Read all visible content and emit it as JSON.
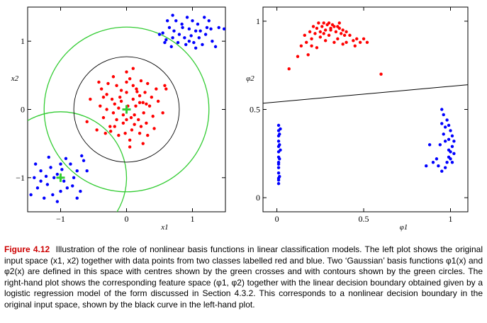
{
  "chart_data": [
    {
      "type": "scatter",
      "panel": "left",
      "xlabel": "x1",
      "ylabel": "x2",
      "xlim": [
        -1.5,
        1.5
      ],
      "ylim": [
        -1.5,
        1.5
      ],
      "xticks": [
        -1,
        0,
        1
      ],
      "xtick_labels": [
        "−1",
        "0",
        "1"
      ],
      "yticks": [
        -1,
        0,
        1
      ],
      "ytick_labels": [
        "−1",
        "0",
        "1"
      ],
      "series": [
        {
          "color": "#ff0000",
          "points": [
            [
              0.02,
              0.05
            ],
            [
              -0.1,
              0.18
            ],
            [
              0.12,
              -0.08
            ],
            [
              -0.2,
              -0.05
            ],
            [
              0.25,
              0.1
            ],
            [
              -0.05,
              -0.2
            ],
            [
              0.15,
              0.3
            ],
            [
              -0.3,
              0.22
            ],
            [
              0.3,
              -0.2
            ],
            [
              -0.15,
              0.35
            ],
            [
              0.05,
              0.45
            ],
            [
              -0.25,
              -0.25
            ],
            [
              0.35,
              0.05
            ],
            [
              0.2,
              -0.35
            ],
            [
              -0.4,
              0.05
            ],
            [
              0.08,
              -0.3
            ],
            [
              -0.08,
              0.28
            ],
            [
              0.22,
              0.42
            ],
            [
              -0.35,
              -0.12
            ],
            [
              0.4,
              -0.1
            ],
            [
              0.1,
              0.15
            ],
            [
              -0.18,
              0.08
            ],
            [
              0.28,
              0.25
            ],
            [
              -0.12,
              -0.38
            ],
            [
              0.18,
              -0.15
            ],
            [
              -0.28,
              0.38
            ],
            [
              0.05,
              -0.45
            ],
            [
              0.45,
              0.3
            ],
            [
              -0.45,
              -0.3
            ],
            [
              0.32,
              -0.38
            ],
            [
              0.0,
              0.25
            ],
            [
              -0.22,
              0.15
            ],
            [
              0.14,
              0.05
            ],
            [
              -0.05,
              -0.08
            ],
            [
              0.26,
              -0.05
            ],
            [
              -0.38,
              0.3
            ],
            [
              0.1,
              0.35
            ],
            [
              -0.15,
              -0.15
            ],
            [
              0.38,
              0.18
            ],
            [
              -0.02,
              -0.35
            ],
            [
              0.2,
              0.2
            ],
            [
              -0.32,
              -0.35
            ],
            [
              0.55,
              -0.05
            ],
            [
              -0.55,
              0.15
            ],
            [
              0.0,
              0.55
            ],
            [
              0.12,
              -0.22
            ],
            [
              -0.24,
              -0.32
            ],
            [
              0.32,
              0.38
            ],
            [
              0.6,
              0.3
            ],
            [
              -0.6,
              -0.18
            ],
            [
              0.05,
              -0.55
            ],
            [
              0.42,
              -0.28
            ],
            [
              -0.2,
              0.48
            ],
            [
              0.1,
              0.6
            ],
            [
              -0.42,
              0.4
            ],
            [
              0.25,
              -0.5
            ],
            [
              0.0,
              -0.15
            ],
            [
              -0.08,
              0.12
            ],
            [
              0.16,
              0.26
            ],
            [
              -0.3,
              0.0
            ],
            [
              0.48,
              0.12
            ],
            [
              0.07,
              -0.12
            ],
            [
              -0.12,
              0.02
            ],
            [
              0.3,
              0.08
            ],
            [
              0.22,
              -0.25
            ],
            [
              -0.18,
              -0.25
            ],
            [
              0.58,
              0.35
            ],
            [
              0.0,
              0.4
            ],
            [
              -0.35,
              0.18
            ],
            [
              0.2,
              0.1
            ]
          ]
        },
        {
          "color": "#0000ff",
          "points": [
            [
              0.55,
              1.12
            ],
            [
              0.7,
              1.05
            ],
            [
              0.85,
              1.2
            ],
            [
              0.95,
              1.0
            ],
            [
              1.05,
              1.15
            ],
            [
              0.75,
              1.3
            ],
            [
              0.9,
              0.95
            ],
            [
              1.1,
              1.05
            ],
            [
              0.65,
              1.2
            ],
            [
              1.0,
              1.3
            ],
            [
              1.2,
              1.1
            ],
            [
              0.8,
              1.1
            ],
            [
              1.15,
              0.95
            ],
            [
              0.6,
              1.02
            ],
            [
              1.25,
              1.3
            ],
            [
              0.95,
              1.18
            ],
            [
              0.7,
              1.38
            ],
            [
              1.05,
              0.9
            ],
            [
              1.3,
              1.0
            ],
            [
              0.88,
              1.05
            ],
            [
              1.4,
              1.2
            ],
            [
              0.78,
              0.98
            ],
            [
              1.08,
              1.25
            ],
            [
              0.92,
              1.35
            ],
            [
              0.62,
              1.3
            ],
            [
              1.18,
              1.35
            ],
            [
              0.5,
              1.1
            ],
            [
              1.35,
              0.92
            ],
            [
              0.98,
              1.08
            ],
            [
              1.22,
              1.2
            ],
            [
              0.72,
              1.15
            ],
            [
              0.84,
              1.25
            ],
            [
              1.12,
              1.15
            ],
            [
              0.58,
              0.98
            ],
            [
              1.28,
              1.18
            ],
            [
              1.02,
              0.98
            ],
            [
              1.48,
              1.18
            ],
            [
              0.68,
              0.92
            ],
            [
              -1.2,
              -1.1
            ],
            [
              -1.05,
              -0.95
            ],
            [
              -0.9,
              -1.15
            ],
            [
              -1.3,
              -0.9
            ],
            [
              -0.8,
              -1.0
            ],
            [
              -1.0,
              -1.2
            ],
            [
              -1.15,
              -0.85
            ],
            [
              -0.95,
              -1.05
            ],
            [
              -1.35,
              -1.15
            ],
            [
              -0.75,
              -0.9
            ],
            [
              -1.25,
              -1.3
            ],
            [
              -0.85,
              -0.8
            ],
            [
              -1.1,
              -1.0
            ],
            [
              -0.7,
              -1.2
            ],
            [
              -1.4,
              -1.0
            ],
            [
              -0.98,
              -0.88
            ],
            [
              -1.18,
              -0.7
            ],
            [
              -0.65,
              -0.75
            ],
            [
              -1.05,
              -1.35
            ],
            [
              -1.45,
              -1.25
            ],
            [
              -0.82,
              -1.12
            ],
            [
              -1.3,
              -1.05
            ],
            [
              -0.92,
              -0.72
            ],
            [
              -0.6,
              -0.9
            ],
            [
              -1.12,
              -1.25
            ],
            [
              -1.22,
              -0.98
            ],
            [
              -0.75,
              -1.3
            ],
            [
              -1.0,
              -0.8
            ],
            [
              -0.68,
              -0.68
            ],
            [
              -1.38,
              -0.8
            ]
          ]
        }
      ],
      "centres": [
        [
          0.0,
          0.0
        ],
        [
          -1.0,
          -1.0
        ]
      ],
      "contour_radii": [
        1.25,
        1.0
      ],
      "decision_boundary_radius": 0.8
    },
    {
      "type": "scatter",
      "panel": "right",
      "xlabel": "φ1",
      "ylabel": "φ2",
      "xlim": [
        -0.08,
        1.1
      ],
      "ylim": [
        -0.08,
        1.08
      ],
      "xticks": [
        0,
        0.5,
        1
      ],
      "xtick_labels": [
        "0",
        "0.5",
        "1"
      ],
      "yticks": [
        0,
        0.5,
        1
      ],
      "ytick_labels": [
        "0",
        "0.5",
        "1"
      ],
      "series": [
        {
          "color": "#ff0000",
          "points": [
            [
              0.07,
              0.73
            ],
            [
              0.12,
              0.8
            ],
            [
              0.14,
              0.86
            ],
            [
              0.16,
              0.92
            ],
            [
              0.17,
              0.88
            ],
            [
              0.19,
              0.94
            ],
            [
              0.2,
              0.9
            ],
            [
              0.21,
              0.97
            ],
            [
              0.22,
              0.93
            ],
            [
              0.23,
              0.96
            ],
            [
              0.24,
              0.99
            ],
            [
              0.25,
              0.94
            ],
            [
              0.26,
              0.97
            ],
            [
              0.27,
              0.99
            ],
            [
              0.28,
              0.95
            ],
            [
              0.29,
              0.98
            ],
            [
              0.3,
              0.99
            ],
            [
              0.31,
              0.96
            ],
            [
              0.32,
              0.98
            ],
            [
              0.33,
              0.97
            ],
            [
              0.34,
              0.94
            ],
            [
              0.35,
              0.97
            ],
            [
              0.36,
              0.96
            ],
            [
              0.37,
              0.93
            ],
            [
              0.38,
              0.95
            ],
            [
              0.39,
              0.92
            ],
            [
              0.4,
              0.94
            ],
            [
              0.42,
              0.92
            ],
            [
              0.44,
              0.89
            ],
            [
              0.46,
              0.9
            ],
            [
              0.48,
              0.88
            ],
            [
              0.5,
              0.9
            ],
            [
              0.52,
              0.88
            ],
            [
              0.2,
              0.86
            ],
            [
              0.25,
              0.91
            ],
            [
              0.3,
              0.92
            ],
            [
              0.35,
              0.9
            ],
            [
              0.4,
              0.88
            ],
            [
              0.45,
              0.86
            ],
            [
              0.18,
              0.81
            ],
            [
              0.23,
              0.85
            ],
            [
              0.28,
              0.89
            ],
            [
              0.33,
              0.88
            ],
            [
              0.38,
              0.87
            ],
            [
              0.6,
              0.7
            ],
            [
              0.31,
              0.95
            ],
            [
              0.36,
              0.99
            ],
            [
              0.27,
              0.93
            ]
          ]
        },
        {
          "color": "#0000ff",
          "points": [
            [
              0.01,
              0.08
            ],
            [
              0.01,
              0.11
            ],
            [
              0.01,
              0.14
            ],
            [
              0.01,
              0.17
            ],
            [
              0.01,
              0.2
            ],
            [
              0.01,
              0.23
            ],
            [
              0.01,
              0.26
            ],
            [
              0.01,
              0.29
            ],
            [
              0.01,
              0.32
            ],
            [
              0.01,
              0.35
            ],
            [
              0.01,
              0.38
            ],
            [
              0.01,
              0.41
            ],
            [
              0.015,
              0.12
            ],
            [
              0.015,
              0.22
            ],
            [
              0.015,
              0.3
            ],
            [
              0.015,
              0.36
            ],
            [
              0.02,
              0.27
            ],
            [
              0.02,
              0.39
            ],
            [
              0.01,
              0.1
            ],
            [
              0.01,
              0.19
            ],
            [
              0.95,
              0.5
            ],
            [
              0.96,
              0.47
            ],
            [
              0.98,
              0.44
            ],
            [
              0.99,
              0.41
            ],
            [
              1.0,
              0.38
            ],
            [
              1.01,
              0.35
            ],
            [
              1.02,
              0.32
            ],
            [
              1.01,
              0.29
            ],
            [
              1.0,
              0.26
            ],
            [
              0.99,
              0.23
            ],
            [
              0.98,
              0.2
            ],
            [
              0.97,
              0.17
            ],
            [
              0.95,
              0.15
            ],
            [
              0.93,
              0.18
            ],
            [
              0.92,
              0.22
            ],
            [
              0.94,
              0.3
            ],
            [
              0.96,
              0.36
            ],
            [
              0.97,
              0.4
            ],
            [
              0.99,
              0.27
            ],
            [
              1.0,
              0.22
            ],
            [
              1.02,
              0.25
            ],
            [
              0.9,
              0.2
            ],
            [
              0.88,
              0.3
            ],
            [
              0.97,
              0.32
            ],
            [
              1.01,
              0.2
            ],
            [
              0.99,
              0.33
            ],
            [
              0.95,
              0.42
            ],
            [
              0.86,
              0.18
            ]
          ]
        }
      ],
      "decision_boundary": [
        [
          -0.08,
          0.535
        ],
        [
          1.1,
          0.64
        ]
      ]
    }
  ],
  "caption": {
    "label": "Figure 4.12",
    "text": "Illustration of the role of nonlinear basis functions in linear classification models. The left plot shows the original input space (x1, x2) together with data points from two classes labelled red and blue. Two ‘Gaussian’ basis functions φ1(x) and φ2(x) are defined in this space with centres shown by the green crosses and with contours shown by the green circles. The right-hand plot shows the corresponding feature space (φ1, φ2) together with the linear decision boundary obtained given by a logistic regression model of the form discussed in Section 4.3.2. This corresponds to a nonlinear decision boundary in the original input space, shown by the black curve in the left-hand plot."
  }
}
